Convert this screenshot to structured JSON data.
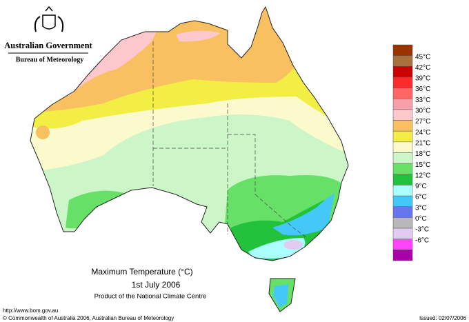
{
  "header": {
    "government": "Australian Government",
    "agency": "Bureau of Meteorology"
  },
  "legend": {
    "colors": [
      "#993300",
      "#a8703c",
      "#cc0000",
      "#ff2a2a",
      "#ff6666",
      "#f7a0a8",
      "#fcc8cc",
      "#f8c060",
      "#f2ee44",
      "#fafacc",
      "#ccf5c8",
      "#66e066",
      "#22c23a",
      "#aaffff",
      "#44c8f8",
      "#6677ee",
      "#b8b8b8",
      "#e0ccf0",
      "#ff44ff",
      "#aa00aa"
    ],
    "labels": [
      "45°C",
      "42°C",
      "39°C",
      "36°C",
      "33°C",
      "30°C",
      "27°C",
      "24°C",
      "21°C",
      "18°C",
      "15°C",
      "12°C",
      "9°C",
      "6°C",
      "3°C",
      "0°C",
      "-3°C",
      "-6°C"
    ]
  },
  "caption": {
    "title": "Maximum Temperature (°C)",
    "date": "1st July 2006",
    "product": "Product of the National Climate Centre"
  },
  "footer": {
    "url": "http://www.bom.gov.au",
    "copyright": "© Commonwealth of Australia 2006, Australian Bureau of Meteorology",
    "issued": "Issued: 02/07/2006"
  }
}
